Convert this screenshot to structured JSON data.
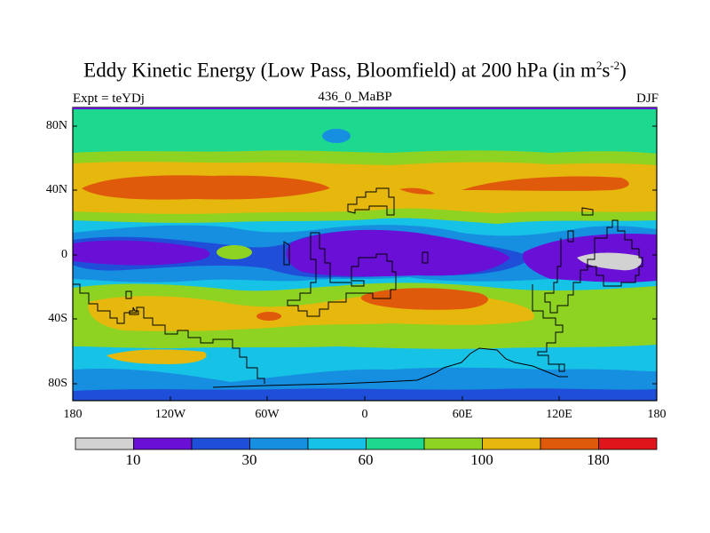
{
  "title": {
    "main": "Eddy Kinetic Energy (Low Pass, Bloomfield) at 200 hPa (in m",
    "exp1": "2",
    "mid": "s",
    "exp2": "-2",
    "close": ")"
  },
  "subtitle_left": "Expt = teYDj",
  "subtitle_center": "436_0_MaBP",
  "subtitle_right": "DJF",
  "y_ticks": [
    "80N",
    "40N",
    "0",
    "40S",
    "80S"
  ],
  "x_ticks": [
    "180",
    "120W",
    "60W",
    "0",
    "60E",
    "120E",
    "180"
  ],
  "colorbar": {
    "colors": [
      "#d2d2d2",
      "#6a0fd6",
      "#1f4fd9",
      "#178fe0",
      "#16c2e6",
      "#1dd98f",
      "#8fd322",
      "#e6b80d",
      "#e05a0c",
      "#e0151b"
    ],
    "labels": [
      "10",
      "30",
      "60",
      "100",
      "180"
    ]
  },
  "palette": {
    "gray": "#d2d2d2",
    "violet": "#6a0fd6",
    "blue": "#1f4fd9",
    "mid_blue": "#178fe0",
    "cyan": "#16c2e6",
    "teal": "#1dd98f",
    "lime": "#8fd322",
    "yellow": "#e6b80d",
    "orange": "#e05a0c",
    "red": "#e0151b",
    "frame_accent": "#6a0fd6"
  }
}
